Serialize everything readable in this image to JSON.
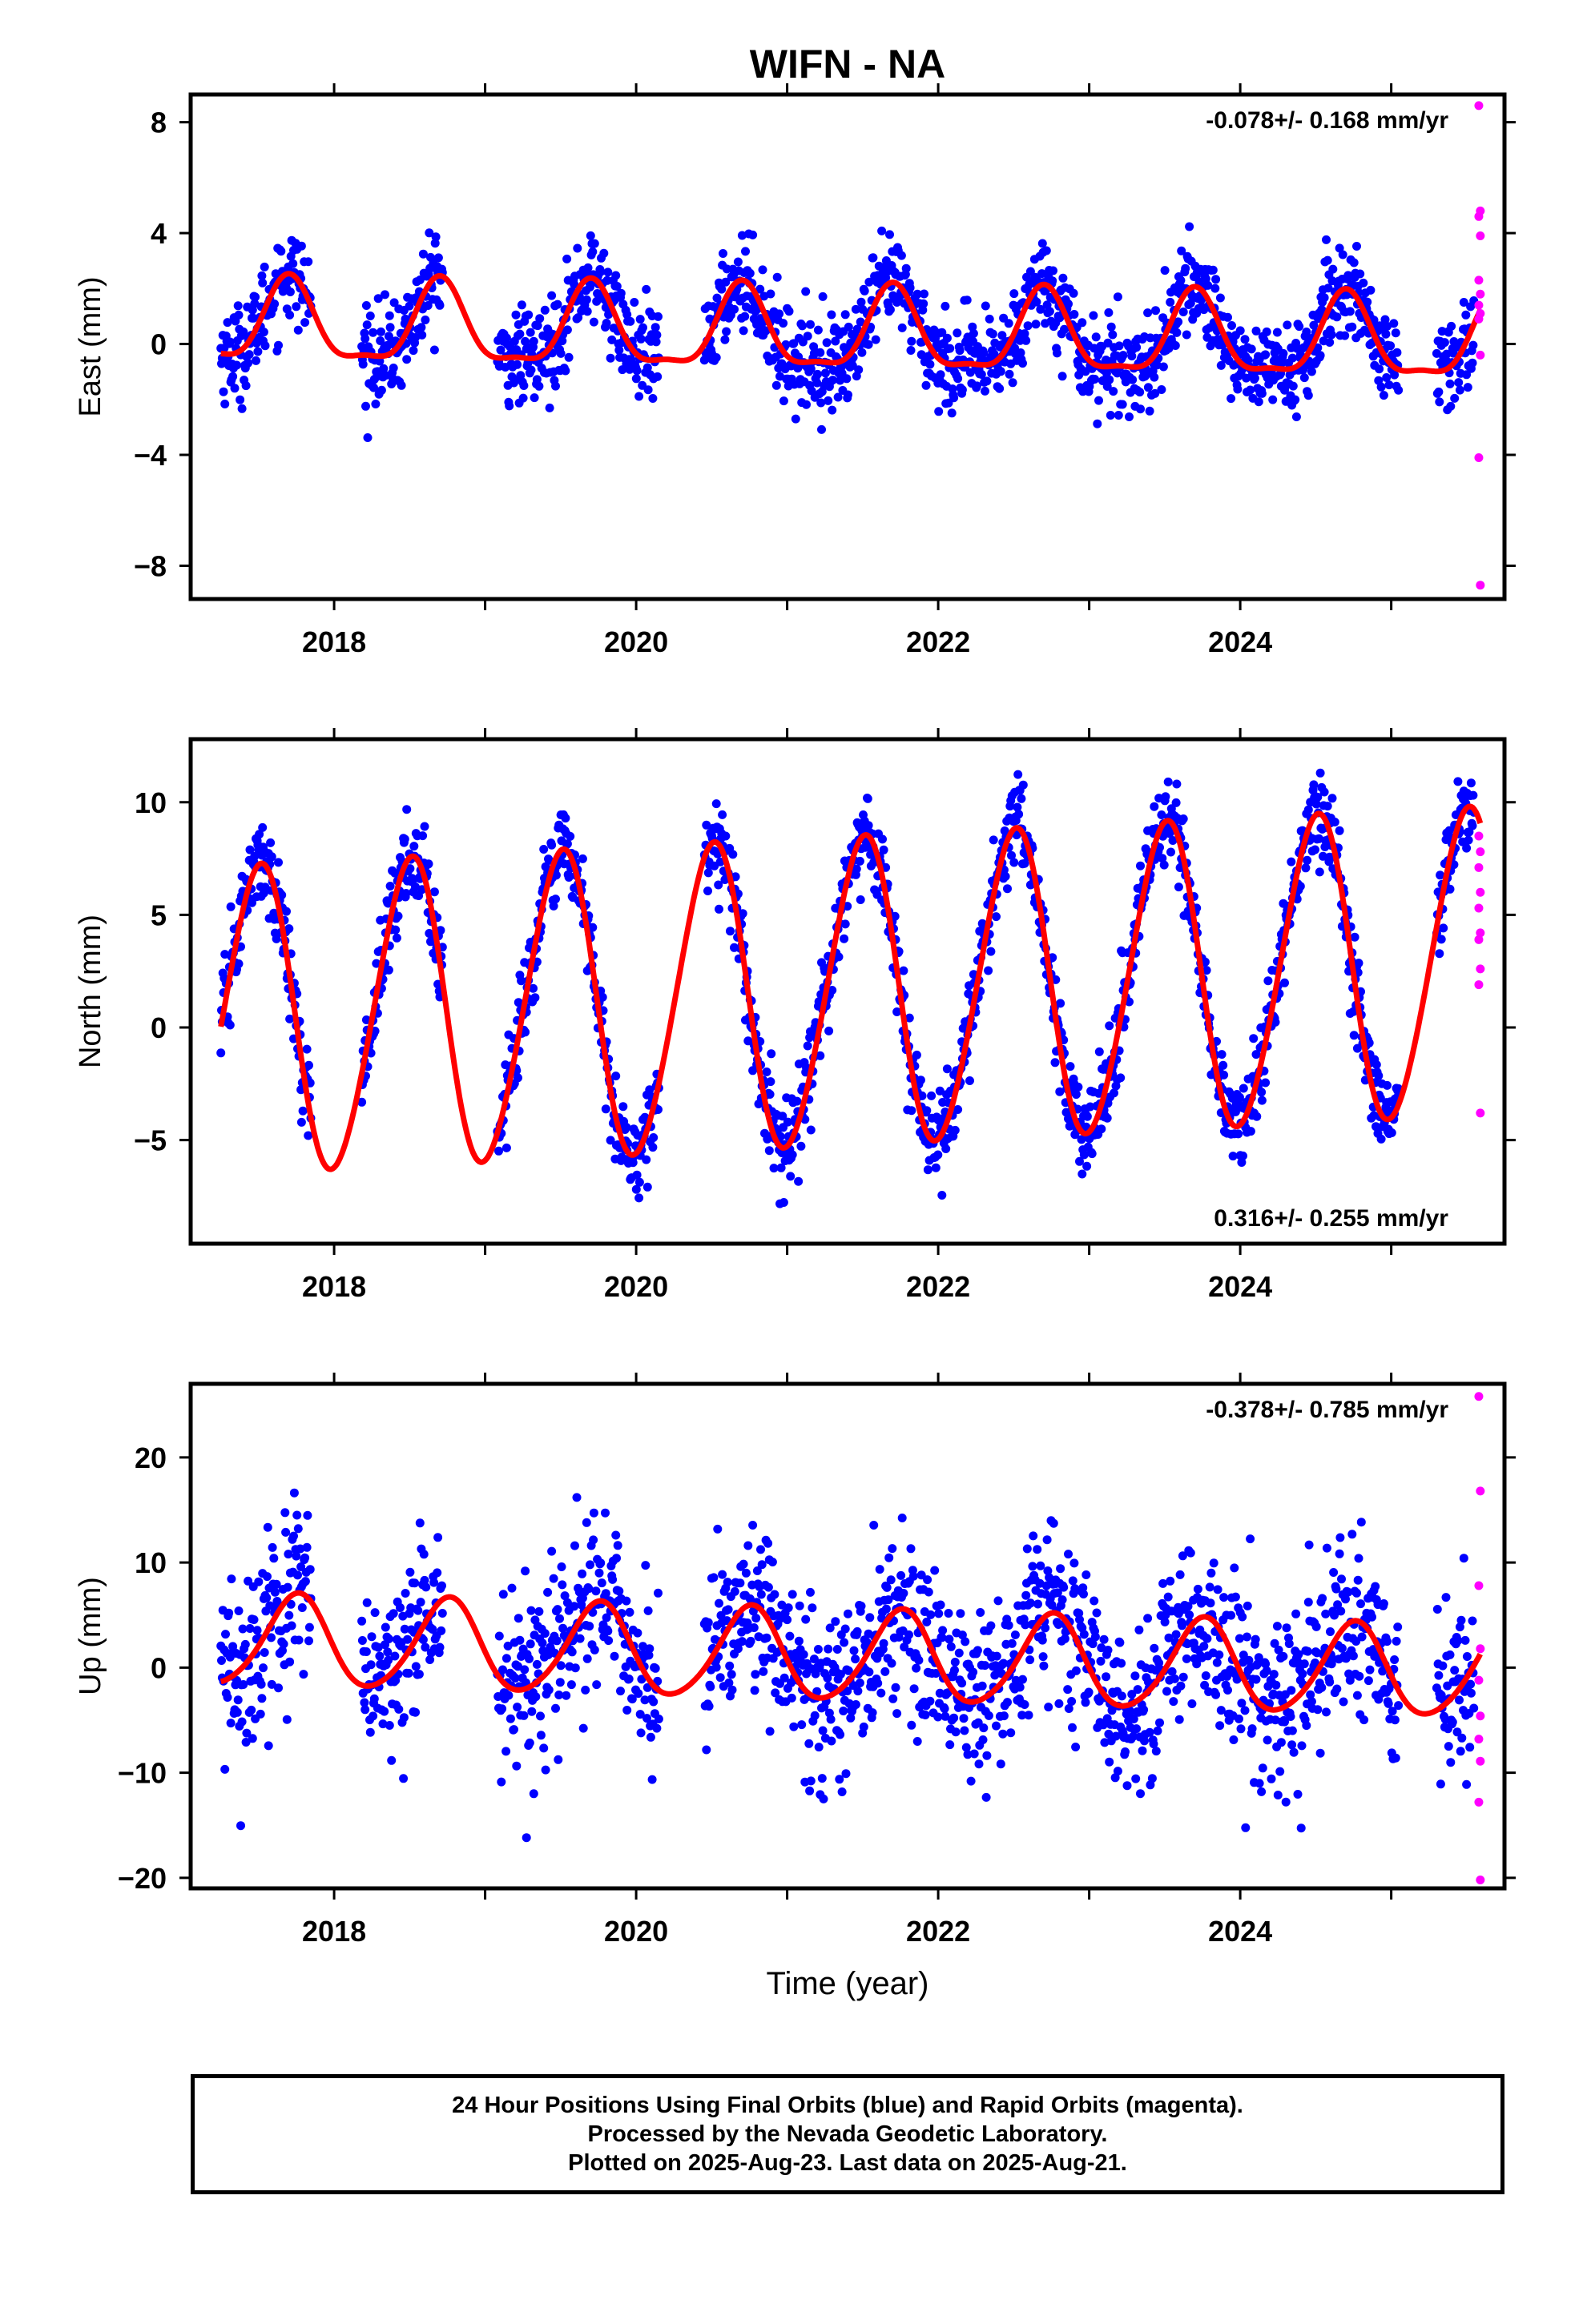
{
  "title": "WIFN - NA",
  "x_axis_label": "Time (year)",
  "footer": {
    "line1": "24 Hour Positions Using Final Orbits (blue) and Rapid Orbits (magenta).",
    "line2": "Processed by the Nevada Geodetic Laboratory.",
    "line3": "Plotted on 2025-Aug-23. Last data on 2025-Aug-21."
  },
  "colors": {
    "final": "#0000ff",
    "rapid": "#ff00ff",
    "model": "#ff0000"
  },
  "chart_data": [
    {
      "type": "scatter",
      "component": "east",
      "ylabel": "East (mm)",
      "rate": "-0.078+/- 0.168 mm/yr",
      "rate_position": "top-right",
      "xlim": [
        2017.05,
        2025.75
      ],
      "ylim": [
        -9.2,
        9.0
      ],
      "xticks": [
        2018,
        2020,
        2022,
        2024
      ],
      "yticks": [
        8,
        4,
        0,
        -4,
        -8
      ],
      "data_span": [
        2017.25,
        2025.55
      ],
      "model": {
        "offset": 0.35,
        "rate": -0.078,
        "annual_amp": 1.45,
        "annual_phase_year": 0.7,
        "semiannual_amp": 0.45,
        "semiannual_phase_year": 0.2
      },
      "scatter_sd": 0.85,
      "rapid_points": [
        {
          "x": 2025.58,
          "y": 8.6
        },
        {
          "x": 2025.59,
          "y": 4.8
        },
        {
          "x": 2025.58,
          "y": 4.6
        },
        {
          "x": 2025.59,
          "y": 3.9
        },
        {
          "x": 2025.58,
          "y": 2.3
        },
        {
          "x": 2025.59,
          "y": 1.8
        },
        {
          "x": 2025.58,
          "y": 1.4
        },
        {
          "x": 2025.59,
          "y": 1.1
        },
        {
          "x": 2025.58,
          "y": 0.9
        },
        {
          "x": 2025.59,
          "y": -0.4
        },
        {
          "x": 2025.58,
          "y": -4.1
        },
        {
          "x": 2025.59,
          "y": -8.7
        }
      ]
    },
    {
      "type": "scatter",
      "component": "north",
      "ylabel": "North (mm)",
      "rate": "0.316+/- 0.255 mm/yr",
      "rate_position": "bottom-right",
      "xlim": [
        2017.05,
        2025.75
      ],
      "ylim": [
        -9.6,
        12.8
      ],
      "xticks": [
        2018,
        2020,
        2022,
        2024
      ],
      "yticks": [
        10,
        5,
        0,
        -5
      ],
      "data_span": [
        2017.25,
        2025.55
      ],
      "model": {
        "offset": 1.5,
        "rate": 0.316,
        "annual_amp": 6.8,
        "annual_phase_year": 0.5,
        "semiannual_amp": 0.5,
        "semiannual_phase_year": 0.1
      },
      "scatter_sd": 1.0,
      "rapid_points": [
        {
          "x": 2025.58,
          "y": 8.5
        },
        {
          "x": 2025.59,
          "y": 7.8
        },
        {
          "x": 2025.58,
          "y": 7.1
        },
        {
          "x": 2025.59,
          "y": 6.0
        },
        {
          "x": 2025.58,
          "y": 5.3
        },
        {
          "x": 2025.59,
          "y": 4.2
        },
        {
          "x": 2025.58,
          "y": 3.9
        },
        {
          "x": 2025.59,
          "y": 2.6
        },
        {
          "x": 2025.58,
          "y": 1.9
        },
        {
          "x": 2025.59,
          "y": -3.8
        }
      ]
    },
    {
      "type": "scatter",
      "component": "up",
      "ylabel": "Up (mm)",
      "rate": "-0.378+/- 0.785 mm/yr",
      "rate_position": "top-right",
      "xlim": [
        2017.05,
        2025.75
      ],
      "ylim": [
        -21.0,
        27.0
      ],
      "xticks": [
        2018,
        2020,
        2022,
        2024
      ],
      "yticks": [
        20,
        10,
        0,
        -10,
        -20
      ],
      "data_span": [
        2017.25,
        2025.55
      ],
      "model": {
        "offset": 1.0,
        "rate": -0.378,
        "annual_amp": 4.3,
        "annual_phase_year": 0.75,
        "semiannual_amp": 0.5,
        "semiannual_phase_year": 0.3
      },
      "scatter_sd": 4.2,
      "rapid_points": [
        {
          "x": 2025.58,
          "y": 25.8
        },
        {
          "x": 2025.59,
          "y": 16.8
        },
        {
          "x": 2025.58,
          "y": 7.8
        },
        {
          "x": 2025.59,
          "y": 1.8
        },
        {
          "x": 2025.58,
          "y": -1.2
        },
        {
          "x": 2025.59,
          "y": -4.6
        },
        {
          "x": 2025.58,
          "y": -6.8
        },
        {
          "x": 2025.59,
          "y": -8.9
        },
        {
          "x": 2025.58,
          "y": -12.8
        },
        {
          "x": 2025.59,
          "y": -20.2
        }
      ]
    }
  ]
}
